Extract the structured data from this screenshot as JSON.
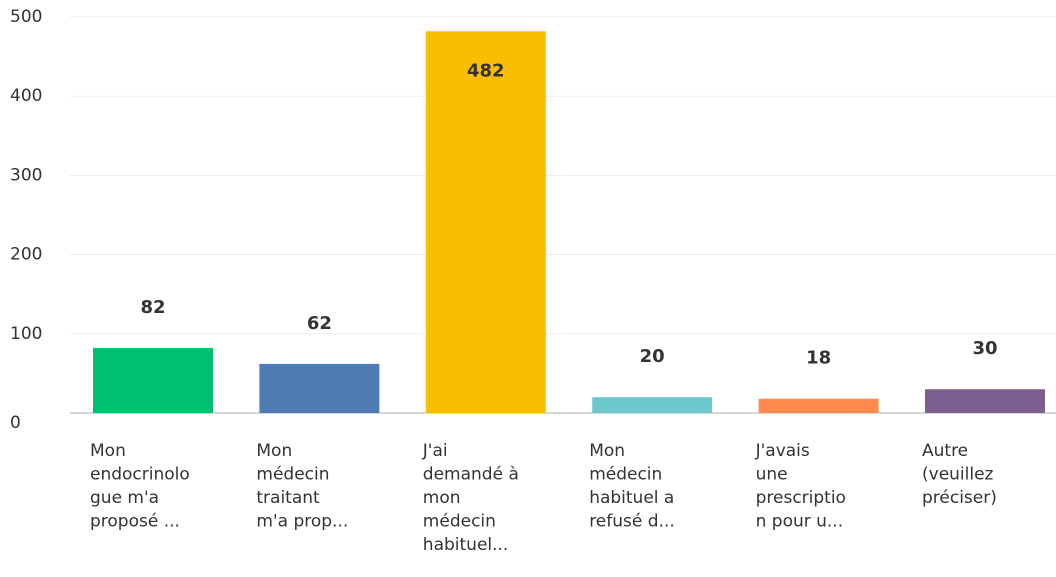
{
  "chart_data": {
    "type": "bar",
    "categories": [
      [
        "Mon",
        "endocrinolo",
        "gue m'a",
        "proposé ..."
      ],
      [
        "Mon",
        "médecin",
        "traitant",
        "m'a prop..."
      ],
      [
        "J'ai",
        "demandé à",
        "mon",
        "médecin",
        "habituel..."
      ],
      [
        "Mon",
        "médecin",
        "habituel a",
        "refusé d..."
      ],
      [
        "J'avais",
        "une",
        "prescriptio",
        "n pour u..."
      ],
      [
        "Autre",
        "(veuillez",
        "préciser)"
      ]
    ],
    "values": [
      82,
      62,
      482,
      20,
      18,
      30
    ],
    "colors": [
      "#00bf6f",
      "#507cb6",
      "#f9be00",
      "#6bc8cd",
      "#ff8b4f",
      "#7d5e90"
    ],
    "ylim": [
      0,
      500
    ],
    "yticks": [
      0,
      100,
      200,
      300,
      400,
      500
    ],
    "grid": true
  }
}
